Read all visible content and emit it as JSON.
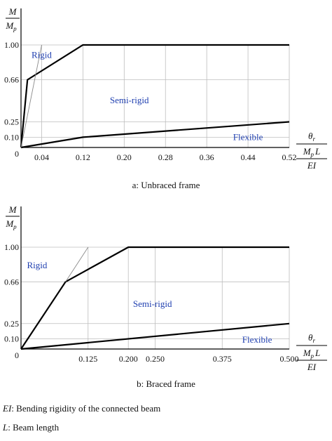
{
  "chart_data": [
    {
      "type": "line",
      "caption": "a: Unbraced frame",
      "y_axis": {
        "num": "M",
        "den_main": "M",
        "den_sub": "p"
      },
      "x_axis": {
        "top_main": "θ",
        "top_sub": "r",
        "num_a": "M",
        "num_a_sub": "p",
        "num_b": "L",
        "den": "EI"
      },
      "origin_label": "0",
      "xlim": [
        0,
        0.52
      ],
      "ylim": [
        0,
        1.0
      ],
      "x_ticks": [
        "0.04",
        "0.12",
        "0.20",
        "0.28",
        "0.36",
        "0.44",
        "0.52"
      ],
      "y_ticks": [
        "0.10",
        "0.25",
        "0.66",
        "1.00"
      ],
      "grid": true,
      "region_labels": [
        {
          "text": "Rigid",
          "x": 0.04,
          "y": 0.9
        },
        {
          "text": "Semi-rigid",
          "x": 0.21,
          "y": 0.46
        },
        {
          "text": "Flexible",
          "x": 0.44,
          "y": 0.1
        }
      ],
      "series": [
        {
          "values": [
            [
              0,
              0
            ],
            [
              0.0125,
              0.66
            ],
            [
              0.12,
              1.0
            ],
            [
              0.52,
              1.0
            ]
          ],
          "weight": "bold"
        },
        {
          "values": [
            [
              0,
              0
            ],
            [
              0.12,
              0.1
            ],
            [
              0.52,
              0.25
            ]
          ],
          "weight": "bold"
        },
        {
          "values": [
            [
              0,
              0
            ],
            [
              0.04,
              1.0
            ]
          ],
          "weight": "thin"
        }
      ]
    },
    {
      "type": "line",
      "caption": "b: Braced frame",
      "y_axis": {
        "num": "M",
        "den_main": "M",
        "den_sub": "p"
      },
      "x_axis": {
        "top_main": "θ",
        "top_sub": "r",
        "num_a": "M",
        "num_a_sub": "p",
        "num_b": "L",
        "den": "EI"
      },
      "origin_label": "0",
      "xlim": [
        0,
        0.5
      ],
      "ylim": [
        0,
        1.0
      ],
      "x_ticks": [
        "0.125",
        "0.200",
        "0.250",
        "0.375",
        "0.500"
      ],
      "y_ticks": [
        "0.10",
        "0.25",
        "0.66",
        "1.00"
      ],
      "grid": true,
      "region_labels": [
        {
          "text": "Rigid",
          "x": 0.03,
          "y": 0.82
        },
        {
          "text": "Semi-rigid",
          "x": 0.245,
          "y": 0.44
        },
        {
          "text": "Flexible",
          "x": 0.44,
          "y": 0.09
        }
      ],
      "series": [
        {
          "values": [
            [
              0,
              0
            ],
            [
              0.083,
              0.66
            ],
            [
              0.2,
              1.0
            ],
            [
              0.5,
              1.0
            ]
          ],
          "weight": "bold"
        },
        {
          "values": [
            [
              0,
              0
            ],
            [
              0.5,
              0.25
            ]
          ],
          "weight": "bold"
        },
        {
          "values": [
            [
              0.083,
              0.66
            ],
            [
              0.125,
              1.0
            ]
          ],
          "weight": "thin"
        }
      ]
    }
  ],
  "footnotes": {
    "ei_symbol": "EI",
    "ei_text": ": Bending rigidity of the connected beam",
    "l_symbol": "L",
    "l_text": ": Beam length"
  },
  "colors": {
    "region_label": "#1f3fb0",
    "grid": "#bdbdbd",
    "curve": "#000000"
  }
}
